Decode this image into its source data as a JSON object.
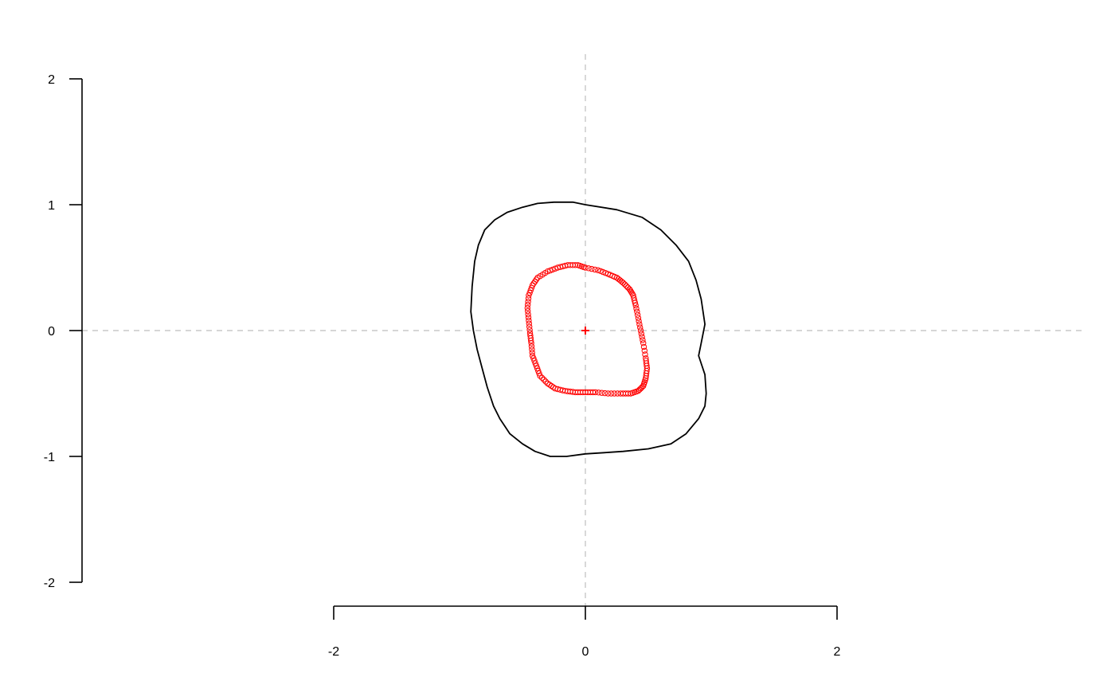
{
  "chart_data": {
    "type": "scatter",
    "title": "",
    "xlabel": "",
    "ylabel": "",
    "xlim": [
      -2,
      2
    ],
    "ylim": [
      -2,
      2
    ],
    "x_ticks": [
      -2,
      0,
      2
    ],
    "x_tick_labels": [
      "-2",
      "0",
      "2"
    ],
    "y_ticks": [
      -2,
      -1,
      0,
      1,
      2
    ],
    "y_tick_labels": [
      "-2",
      "-1",
      "0",
      "1",
      "2"
    ],
    "grid": false,
    "reference_lines": {
      "x": 0,
      "y": 0,
      "style": "dashed",
      "color": "#bebebe"
    },
    "series": [
      {
        "style": "line",
        "color": "#000000",
        "x": [
          0.0,
          0.25,
          0.45,
          0.6,
          0.72,
          0.82,
          0.88,
          0.92,
          0.95,
          0.92,
          0.9,
          0.95,
          0.96,
          0.95,
          0.9,
          0.8,
          0.68,
          0.5,
          0.3,
          0.15,
          0.0,
          -0.15,
          -0.28,
          -0.4,
          -0.5,
          -0.6,
          -0.68,
          -0.73,
          -0.78,
          -0.82,
          -0.86,
          -0.89,
          -0.91,
          -0.9,
          -0.88,
          -0.85,
          -0.8,
          -0.72,
          -0.62,
          -0.5,
          -0.38,
          -0.25,
          -0.1
        ],
        "y": [
          1.0,
          0.96,
          0.9,
          0.8,
          0.68,
          0.55,
          0.4,
          0.25,
          0.05,
          -0.1,
          -0.2,
          -0.35,
          -0.5,
          -0.6,
          -0.7,
          -0.82,
          -0.9,
          -0.94,
          -0.96,
          -0.97,
          -0.98,
          -1.0,
          -1.0,
          -0.96,
          -0.9,
          -0.82,
          -0.7,
          -0.6,
          -0.45,
          -0.3,
          -0.15,
          0.0,
          0.15,
          0.35,
          0.55,
          0.68,
          0.8,
          0.88,
          0.94,
          0.98,
          1.01,
          1.02,
          1.02
        ]
      },
      {
        "style": "points",
        "marker": "open-circle",
        "color": "#ff0000",
        "x": [
          0.0,
          0.1,
          0.18,
          0.25,
          0.3,
          0.35,
          0.38,
          0.4,
          0.42,
          0.44,
          0.46,
          0.48,
          0.49,
          0.48,
          0.46,
          0.42,
          0.36,
          0.28,
          0.18,
          0.08,
          0.0,
          -0.08,
          -0.16,
          -0.24,
          -0.3,
          -0.36,
          -0.39,
          -0.42,
          -0.43,
          -0.44,
          -0.45,
          -0.46,
          -0.45,
          -0.42,
          -0.38,
          -0.3,
          -0.22,
          -0.14,
          -0.06
        ],
        "y": [
          0.5,
          0.48,
          0.45,
          0.42,
          0.38,
          0.33,
          0.28,
          0.2,
          0.1,
          0.0,
          -0.1,
          -0.22,
          -0.3,
          -0.38,
          -0.44,
          -0.48,
          -0.5,
          -0.5,
          -0.5,
          -0.49,
          -0.49,
          -0.49,
          -0.48,
          -0.46,
          -0.42,
          -0.36,
          -0.28,
          -0.2,
          -0.1,
          -0.02,
          0.08,
          0.18,
          0.28,
          0.36,
          0.42,
          0.47,
          0.5,
          0.52,
          0.52
        ]
      },
      {
        "style": "points",
        "marker": "plus",
        "color": "#ff0000",
        "x": [
          0
        ],
        "y": [
          0
        ]
      }
    ]
  }
}
